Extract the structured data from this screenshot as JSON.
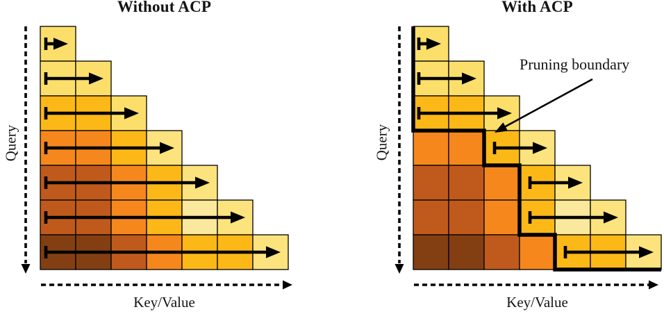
{
  "figure": {
    "kind": "attention-pruning-comparison",
    "annotation_label": "Pruning boundary"
  },
  "palette": {
    "yellow": "#FCDF6B",
    "pale_yellow": "#FCE37D",
    "cream": "#FAE89C",
    "gold": "#FCB816",
    "orange": "#F6871D",
    "sienna": "#C05A1C",
    "brown": "#833F11",
    "line": "#000000"
  },
  "diagrams": [
    {
      "id": "without-acp",
      "title": "Without ACP",
      "query_axis_label": "Query",
      "kv_axis_label": "Key/Value",
      "rows": [
        {
          "cells": [
            "yellow"
          ],
          "arrow_start_col": 1
        },
        {
          "cells": [
            "yellow",
            "yellow"
          ],
          "arrow_start_col": 1
        },
        {
          "cells": [
            "gold",
            "gold",
            "yellow"
          ],
          "arrow_start_col": 1
        },
        {
          "cells": [
            "orange",
            "orange",
            "gold",
            "pale_yellow"
          ],
          "arrow_start_col": 1
        },
        {
          "cells": [
            "sienna",
            "sienna",
            "orange",
            "gold",
            "pale_yellow"
          ],
          "arrow_start_col": 1
        },
        {
          "cells": [
            "sienna",
            "sienna",
            "orange",
            "gold",
            "cream",
            "pale_yellow"
          ],
          "arrow_start_col": 1
        },
        {
          "cells": [
            "brown",
            "brown",
            "sienna",
            "orange",
            "gold",
            "gold",
            "pale_yellow"
          ],
          "arrow_start_col": 1
        }
      ],
      "pruned_per_row": null
    },
    {
      "id": "with-acp",
      "title": "With ACP",
      "query_axis_label": "Query",
      "kv_axis_label": "Key/Value",
      "rows": [
        {
          "cells": [
            "yellow"
          ],
          "arrow_start_col": 1
        },
        {
          "cells": [
            "yellow",
            "yellow"
          ],
          "arrow_start_col": 1
        },
        {
          "cells": [
            "gold",
            "gold",
            "yellow"
          ],
          "arrow_start_col": 1
        },
        {
          "cells": [
            "orange",
            "orange",
            "gold",
            "pale_yellow"
          ],
          "arrow_start_col": 3
        },
        {
          "cells": [
            "sienna",
            "sienna",
            "orange",
            "gold",
            "pale_yellow"
          ],
          "arrow_start_col": 4
        },
        {
          "cells": [
            "sienna",
            "sienna",
            "orange",
            "gold",
            "cream",
            "pale_yellow"
          ],
          "arrow_start_col": 4
        },
        {
          "cells": [
            "brown",
            "brown",
            "sienna",
            "orange",
            "gold",
            "gold",
            "pale_yellow"
          ],
          "arrow_start_col": 5
        }
      ],
      "pruned_per_row": [
        0,
        0,
        0,
        2,
        3,
        3,
        4
      ],
      "annotation": {
        "label": "Pruning boundary"
      }
    }
  ]
}
